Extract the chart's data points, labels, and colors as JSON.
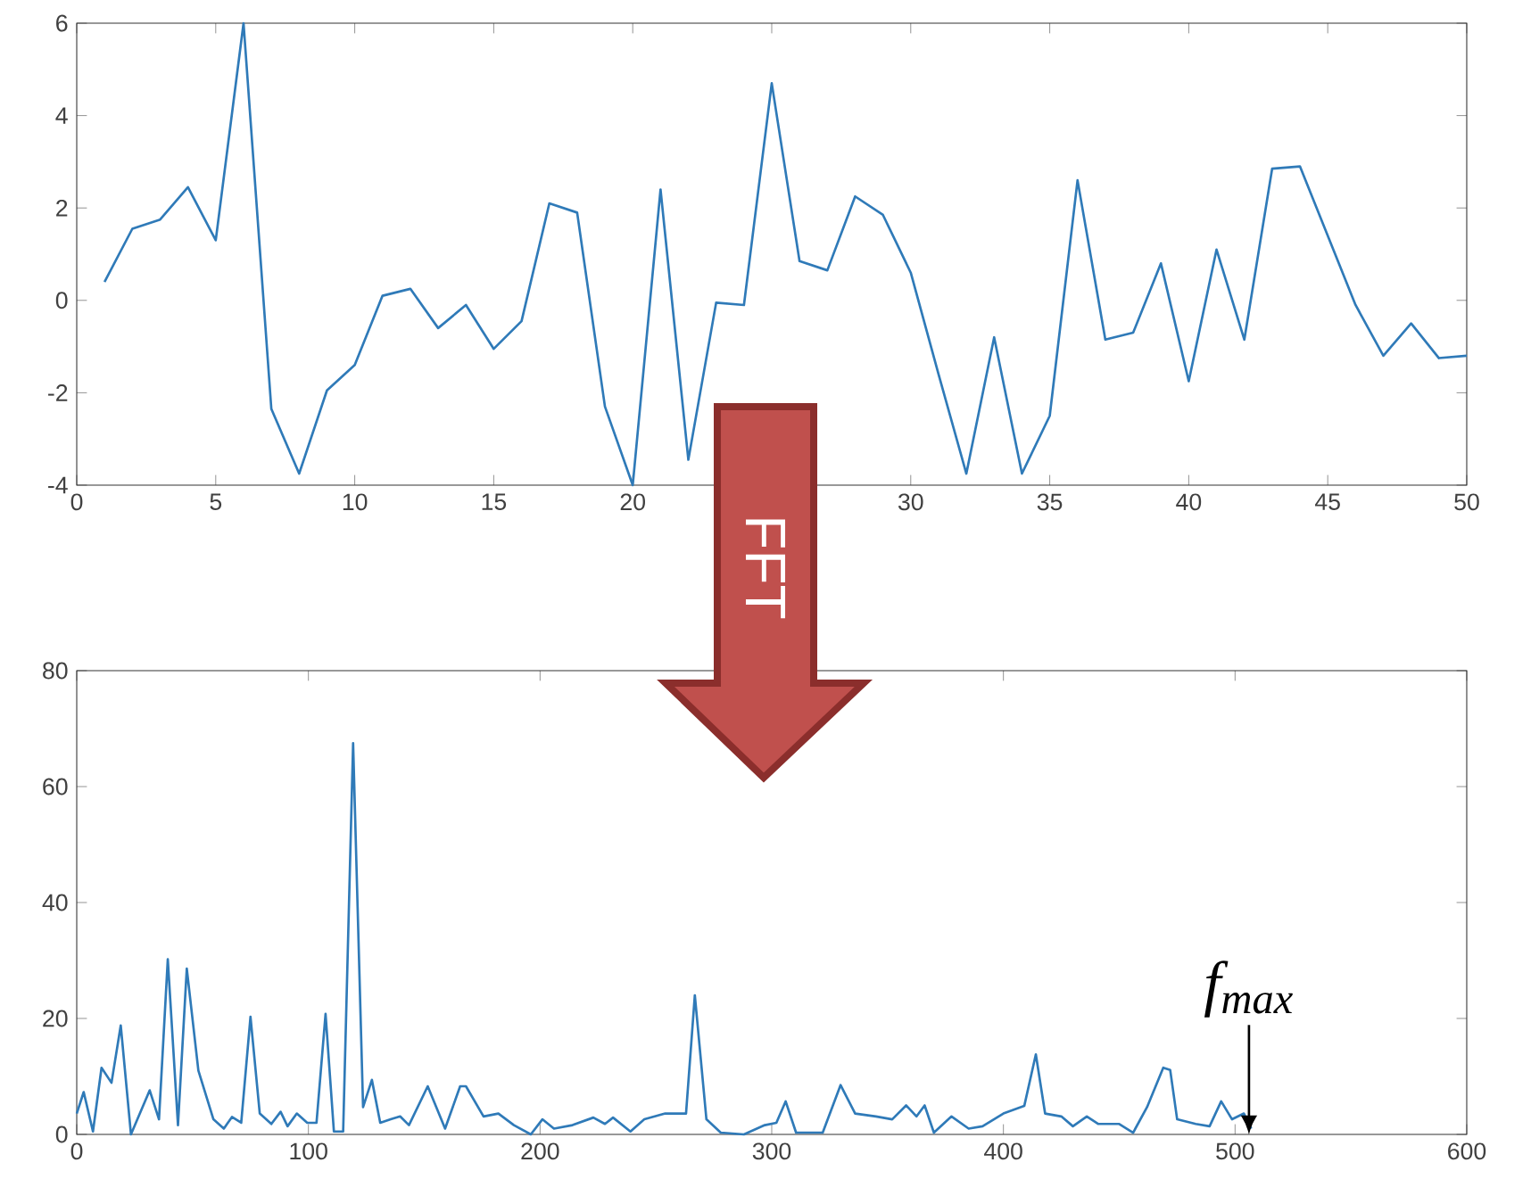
{
  "chart_data": [
    {
      "type": "line",
      "x": [
        1,
        2,
        3,
        4,
        5,
        6,
        7,
        8,
        9,
        10,
        11,
        12,
        13,
        14,
        15,
        16,
        17,
        18,
        19,
        20,
        21,
        22,
        23,
        24,
        25,
        26,
        27,
        28,
        29,
        30,
        31,
        32,
        33,
        34,
        35,
        36,
        37,
        38,
        39,
        40,
        41,
        42,
        43,
        44,
        45,
        46,
        47,
        48,
        49,
        50
      ],
      "series": [
        {
          "color": "#2f7ab8",
          "values": [
            0.4,
            1.55,
            1.75,
            2.45,
            1.3,
            6.0,
            -2.35,
            -3.75,
            -1.95,
            -1.4,
            0.1,
            0.25,
            -0.6,
            -0.1,
            -1.05,
            -0.45,
            2.1,
            1.9,
            -2.3,
            -4.0,
            2.4,
            -3.45,
            -0.05,
            -0.1,
            4.7,
            0.85,
            0.65,
            2.25,
            1.85,
            0.6,
            -1.6,
            -3.75,
            -0.8,
            -3.75,
            -2.5,
            2.6,
            -0.85,
            -0.7,
            0.8,
            -1.75,
            1.1,
            -0.85,
            2.85,
            2.9,
            1.4,
            -0.1,
            -1.2,
            -0.5,
            -1.25,
            -1.2
          ]
        }
      ],
      "xlim": [
        0,
        50
      ],
      "xticks": [
        0,
        5,
        10,
        15,
        20,
        {
          "value": 25,
          "label": null
        },
        30,
        35,
        40,
        45,
        50
      ],
      "ylim": [
        -4,
        6
      ],
      "yticks": [
        -4,
        -2,
        0,
        2,
        4,
        6
      ],
      "annotations": [
        "FFT"
      ]
    },
    {
      "type": "line",
      "x": [
        0,
        3,
        7,
        10.7,
        15,
        19,
        23.4,
        31.5,
        35.5,
        39.3,
        43.7,
        47.5,
        52.5,
        59,
        63.5,
        67,
        71,
        75,
        79,
        84,
        88,
        91,
        95,
        99.5,
        103.5,
        107.4,
        111,
        115,
        119.3,
        123.6,
        127.4,
        131,
        135.5,
        139.6,
        143.4,
        151.5,
        159,
        165.5,
        168,
        175.6,
        182,
        188.7,
        196,
        201,
        206,
        214,
        223,
        228,
        231.5,
        239,
        245,
        254,
        263,
        266.8,
        271.8,
        278,
        288,
        297,
        302,
        306,
        310.5,
        322,
        329.7,
        336,
        345,
        352,
        358,
        362.5,
        366,
        370,
        377.6,
        385,
        391,
        400,
        409,
        414,
        418,
        425,
        430,
        436,
        441,
        450,
        456,
        462,
        469,
        472,
        475,
        483,
        489,
        494,
        498.7,
        503.8,
        507
      ],
      "series": [
        {
          "color": "#2f7ab8",
          "values": [
            3.6,
            7.3,
            0.5,
            11.5,
            8.9,
            18.8,
            0,
            7.6,
            2.6,
            30.2,
            1.6,
            28.6,
            11,
            2.6,
            1,
            3,
            2,
            20.3,
            3.6,
            1.8,
            3.9,
            1.4,
            3.6,
            2,
            2,
            20.8,
            0.5,
            0.5,
            67.5,
            4.7,
            9.4,
            2,
            2.6,
            3.1,
            1.6,
            8.3,
            1,
            8.3,
            8.3,
            3.1,
            3.6,
            1.6,
            0,
            2.6,
            1,
            1.6,
            2.9,
            1.8,
            2.9,
            0.5,
            2.6,
            3.6,
            3.6,
            24,
            2.6,
            0.3,
            0,
            1.6,
            2,
            5.7,
            0.3,
            0.3,
            8.5,
            3.6,
            3.1,
            2.6,
            5,
            3.1,
            5,
            0.3,
            3.1,
            1,
            1.4,
            3.6,
            4.9,
            13.8,
            3.6,
            3.1,
            1.4,
            3.1,
            1.8,
            1.8,
            0.3,
            4.7,
            11.5,
            11.1,
            2.6,
            1.8,
            1.4,
            5.7,
            2.6,
            3.6,
            1
          ]
        }
      ],
      "xlim": [
        0,
        600
      ],
      "xticks": [
        0,
        100,
        200,
        300,
        400,
        500,
        600
      ],
      "ylim": [
        0,
        80
      ],
      "yticks": [
        0,
        20,
        40,
        60,
        80
      ],
      "annotations": [
        {
          "text": "f$_{max}$",
          "x": 506,
          "y": 0
        }
      ]
    }
  ]
}
